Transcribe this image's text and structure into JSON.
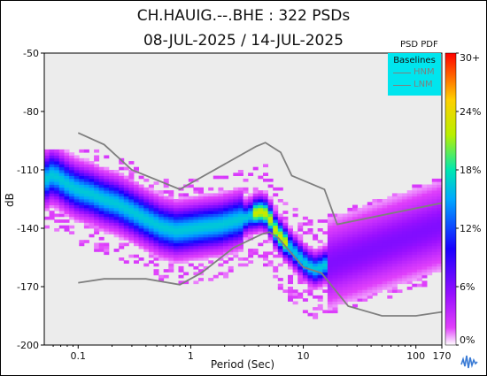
{
  "header": {
    "title_line1": "CH.HAUIG.--.BHE : 322 PSDs",
    "title_line2": "08-JUL-2025 / 14-JUL-2025"
  },
  "legend": {
    "title": "Baselines",
    "items": [
      {
        "label": "HNM",
        "color": "#7f7f7f"
      },
      {
        "label": "LNM",
        "color": "#7f7f7f"
      }
    ]
  },
  "colorbar": {
    "title": "PSD PDF",
    "tick_labels": [
      "30+",
      "24%",
      "18%",
      "12%",
      "6%",
      "0%"
    ]
  },
  "logo": "seismic-trace-logo-icon",
  "chart_data": {
    "type": "heatmap",
    "xlabel": "Period (Sec)",
    "ylabel": "dB",
    "x_scale": "log",
    "xlim": [
      0.05,
      170
    ],
    "ylim": [
      -200,
      -50
    ],
    "x_ticks": [
      0.1,
      1,
      10,
      100,
      170
    ],
    "x_tick_labels": [
      "0.1",
      "1",
      "10",
      "100",
      "170"
    ],
    "y_ticks": [
      -50,
      -80,
      -110,
      -140,
      -170,
      -200
    ],
    "y_tick_labels": [
      "-50",
      "-80",
      "-110",
      "-140",
      "-170",
      "-200"
    ],
    "colorbar_range": [
      0,
      30
    ],
    "hnm": [
      {
        "x": 0.1,
        "y": -91
      },
      {
        "x": 0.17,
        "y": -97
      },
      {
        "x": 0.3,
        "y": -110
      },
      {
        "x": 0.8,
        "y": -120
      },
      {
        "x": 3.8,
        "y": -98
      },
      {
        "x": 4.6,
        "y": -96
      },
      {
        "x": 6.3,
        "y": -101
      },
      {
        "x": 7.9,
        "y": -113
      },
      {
        "x": 15.4,
        "y": -120
      },
      {
        "x": 20,
        "y": -138
      },
      {
        "x": 170,
        "y": -127
      }
    ],
    "lnm": [
      {
        "x": 0.1,
        "y": -168
      },
      {
        "x": 0.17,
        "y": -166
      },
      {
        "x": 0.4,
        "y": -166
      },
      {
        "x": 0.8,
        "y": -169
      },
      {
        "x": 1.24,
        "y": -163
      },
      {
        "x": 2.4,
        "y": -150
      },
      {
        "x": 4.3,
        "y": -143
      },
      {
        "x": 5,
        "y": -142
      },
      {
        "x": 6,
        "y": -145
      },
      {
        "x": 10,
        "y": -160
      },
      {
        "x": 14.5,
        "y": -163
      },
      {
        "x": 25,
        "y": -180
      },
      {
        "x": 50,
        "y": -185
      },
      {
        "x": 100,
        "y": -185
      },
      {
        "x": 170,
        "y": -183
      }
    ],
    "mode_curve": [
      {
        "x": 0.05,
        "y": -116
      },
      {
        "x": 0.06,
        "y": -113
      },
      {
        "x": 0.08,
        "y": -118
      },
      {
        "x": 0.1,
        "y": -121
      },
      {
        "x": 0.13,
        "y": -123
      },
      {
        "x": 0.17,
        "y": -126
      },
      {
        "x": 0.22,
        "y": -128
      },
      {
        "x": 0.3,
        "y": -132
      },
      {
        "x": 0.4,
        "y": -136
      },
      {
        "x": 0.55,
        "y": -140
      },
      {
        "x": 0.75,
        "y": -142
      },
      {
        "x": 1.0,
        "y": -141
      },
      {
        "x": 1.3,
        "y": -140
      },
      {
        "x": 1.8,
        "y": -139
      },
      {
        "x": 2.4,
        "y": -137
      },
      {
        "x": 3.2,
        "y": -135
      },
      {
        "x": 4.0,
        "y": -132
      },
      {
        "x": 4.6,
        "y": -133
      },
      {
        "x": 5.2,
        "y": -137
      },
      {
        "x": 5.7,
        "y": -142
      },
      {
        "x": 6.5,
        "y": -146
      },
      {
        "x": 7.5,
        "y": -150
      },
      {
        "x": 9.0,
        "y": -155
      },
      {
        "x": 11,
        "y": -160
      },
      {
        "x": 13,
        "y": -162
      },
      {
        "x": 15,
        "y": -160
      }
    ],
    "pdf_spread_db": {
      "low_x": 16,
      "high_x": 170
    }
  }
}
